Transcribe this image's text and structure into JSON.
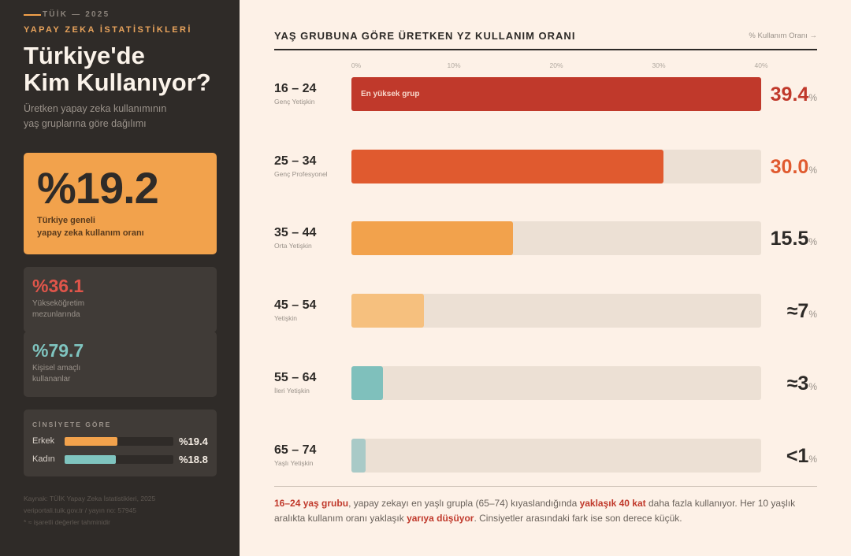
{
  "sidebar": {
    "kicker": "TÜİK — 2025",
    "sub_kicker": "YAPAY ZEKA İSTATİSTİKLERİ",
    "title_line1": "Türkiye'de",
    "title_line2": "Kim Kullanıyor?",
    "desc_line1": "Üretken yapay zeka kullanımının",
    "desc_line2": "yaş gruplarına göre dağılımı",
    "hero": {
      "value": "%19.2",
      "label_line1": "Türkiye geneli",
      "label_line2": "yapay zeka kullanım oranı"
    },
    "stats": [
      {
        "value": "%36.1",
        "line1": "Yükseköğretim",
        "line2": "mezunlarında",
        "color": "#e0554a"
      },
      {
        "value": "%79.7",
        "line1": "Kişisel amaçlı",
        "line2": "kullananlar",
        "color": "#7fc4bf"
      }
    ],
    "gender": {
      "heading": "CİNSİYETE GÖRE",
      "scale_max": 40,
      "rows": [
        {
          "label": "Erkek",
          "value": 19.4,
          "text": "%19.4",
          "color": "#f2a24c"
        },
        {
          "label": "Kadın",
          "value": 18.8,
          "text": "%18.8",
          "color": "#7fc4bf"
        }
      ]
    },
    "source": [
      "Kaynak: TÜİK Yapay Zeka İstatistikleri, 2025",
      "veriportali.tuik.gov.tr / yayın no: 57945",
      "* ≈ işaretli değerler tahminidir"
    ]
  },
  "chart_data": {
    "type": "bar",
    "orientation": "horizontal",
    "title": "YAŞ GRUBUNA GÖRE ÜRETKEN YZ KULLANIM ORANI",
    "legend": "% Kullanım Oranı →",
    "xlim": [
      0,
      40
    ],
    "ticks": [
      "0%",
      "10%",
      "20%",
      "30%",
      "40%"
    ],
    "unit": "%",
    "categories": [
      "16 – 24",
      "25 – 34",
      "35 – 44",
      "45 – 54",
      "55 – 64",
      "65 – 74"
    ],
    "subtitles": [
      "Genç Yetişkin",
      "Genç Profesyonel",
      "Orta Yetişkin",
      "Yetişkin",
      "İleri Yetişkin",
      "Yaşlı Yetişkin"
    ],
    "values": [
      39.4,
      30.0,
      15.5,
      7,
      3,
      1
    ],
    "value_labels": [
      "39.4",
      "30.0",
      "15.5",
      "≈7",
      "≈3",
      "<1"
    ],
    "colors": [
      "#c0392b",
      "#e05a2f",
      "#f2a24c",
      "#f6c07e",
      "#7fc0bc",
      "#a9cac7"
    ],
    "value_colors": [
      "#c0392b",
      "#e05a2f",
      "#2d2a27",
      "#2d2a27",
      "#2d2a27",
      "#2d2a27"
    ],
    "bar_annotations": [
      "En yüksek grup",
      "",
      "",
      "",
      "",
      ""
    ]
  },
  "note": {
    "p1": "16–24 yaş grubu",
    "p2": ", yapay zekayı en yaşlı grupla (65–74) kıyaslandığında ",
    "p3": "yaklaşık 40 kat",
    "p4": " daha fazla kullanıyor. Her 10 yaşlık aralıkta kullanım oranı yaklaşık ",
    "p5": "yarıya düşüyor",
    "p6": ". Cinsiyetler arasındaki fark ise son derece küçük."
  }
}
